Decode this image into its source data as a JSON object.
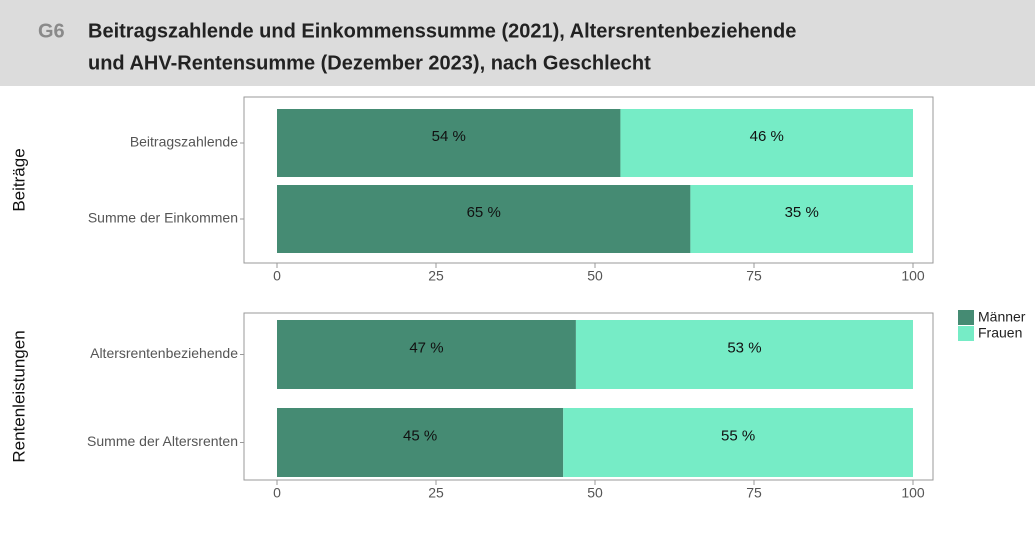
{
  "header": {
    "code": "G6",
    "title": [
      "Beitragszahlende und Einkommenssumme (2021), Altersrentenbeziehende",
      "und AHV-Rentensumme (Dezember 2023), nach Geschlecht"
    ]
  },
  "legend": [
    {
      "name": "Männer",
      "color": "#458b73"
    },
    {
      "name": "Frauen",
      "color": "#76ecc6"
    }
  ],
  "chart_data": [
    {
      "type": "bar",
      "facet": "Beiträge",
      "categories": [
        "Beitragszahlende",
        "Summe der Einkommen"
      ],
      "series": [
        {
          "values": [
            54,
            65
          ],
          "value_labels": [
            "54 %",
            "65 %"
          ]
        },
        {
          "values": [
            46,
            35
          ],
          "value_labels": [
            "46 %",
            "35 %"
          ]
        }
      ],
      "xlim": [
        0,
        100
      ],
      "xticks": [
        0,
        25,
        50,
        75,
        100
      ]
    },
    {
      "type": "bar",
      "facet": "Rentenleistungen",
      "categories": [
        "Altersrentenbeziehende",
        "Summe der Altersrenten"
      ],
      "series": [
        {
          "values": [
            47,
            45
          ],
          "value_labels": [
            "47 %",
            "45 %"
          ]
        },
        {
          "values": [
            53,
            55
          ],
          "value_labels": [
            "53 %",
            "55 %"
          ]
        }
      ],
      "xlim": [
        0,
        100
      ],
      "xticks": [
        0,
        25,
        50,
        75,
        100
      ]
    }
  ]
}
